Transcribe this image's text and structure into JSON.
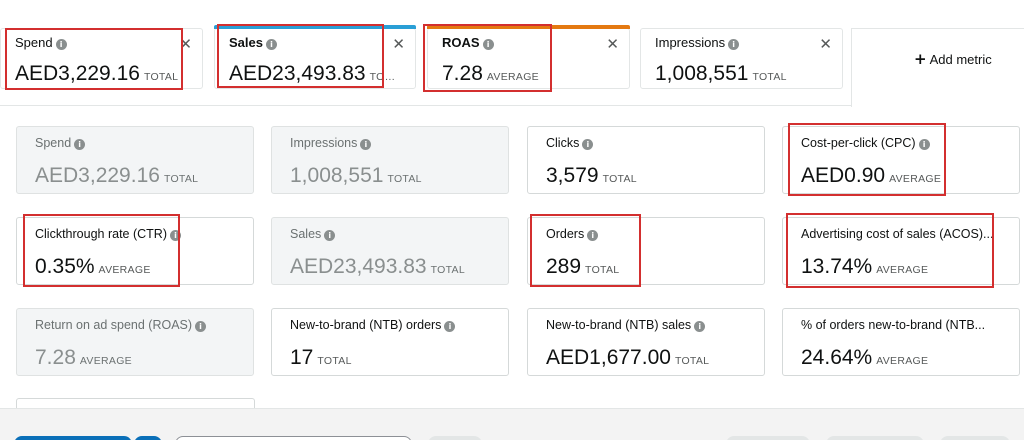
{
  "selected_metrics": [
    {
      "title": "Spend",
      "value": "AED3,229.16",
      "unit": "TOTAL",
      "accent": ""
    },
    {
      "title": "Sales",
      "value": "AED23,493.83",
      "unit": "TO…",
      "accent": "#2a9fd6"
    },
    {
      "title": "ROAS",
      "value": "7.28",
      "unit": "AVERAGE",
      "accent": "#e47911"
    },
    {
      "title": "Impressions",
      "value": "1,008,551",
      "unit": "TOTAL",
      "accent": ""
    }
  ],
  "add_metric_label": "Add metric",
  "info_glyph": "i",
  "close_glyph": "✕",
  "metrics": [
    {
      "title": "Spend",
      "value": "AED3,229.16",
      "unit": "TOTAL",
      "selected": true
    },
    {
      "title": "Impressions",
      "value": "1,008,551",
      "unit": "TOTAL",
      "selected": true
    },
    {
      "title": "Clicks",
      "value": "3,579",
      "unit": "TOTAL",
      "selected": false
    },
    {
      "title": "Cost-per-click (CPC)",
      "value": "AED0.90",
      "unit": "AVERAGE",
      "selected": false
    },
    {
      "title": "Clickthrough rate (CTR)",
      "value": "0.35%",
      "unit": "AVERAGE",
      "selected": false
    },
    {
      "title": "Sales",
      "value": "AED23,493.83",
      "unit": "TOTAL",
      "selected": true
    },
    {
      "title": "Orders",
      "value": "289",
      "unit": "TOTAL",
      "selected": false
    },
    {
      "title": "Advertising cost of sales (ACOS)...",
      "value": "13.74%",
      "unit": "AVERAGE",
      "selected": false
    },
    {
      "title": "Return on ad spend (ROAS)",
      "value": "7.28",
      "unit": "AVERAGE",
      "selected": true
    },
    {
      "title": "New-to-brand (NTB) orders",
      "value": "17",
      "unit": "TOTAL",
      "selected": false
    },
    {
      "title": "New-to-brand (NTB) sales",
      "value": "AED1,677.00",
      "unit": "TOTAL",
      "selected": false
    },
    {
      "title": "% of orders new-to-brand (NTB...",
      "value": "24.64%",
      "unit": "AVERAGE",
      "selected": false
    }
  ],
  "colors": {
    "highlight": "#d32f2f",
    "primary_button": "#0a6fb8",
    "disabled_card": "#f3f5f6"
  }
}
